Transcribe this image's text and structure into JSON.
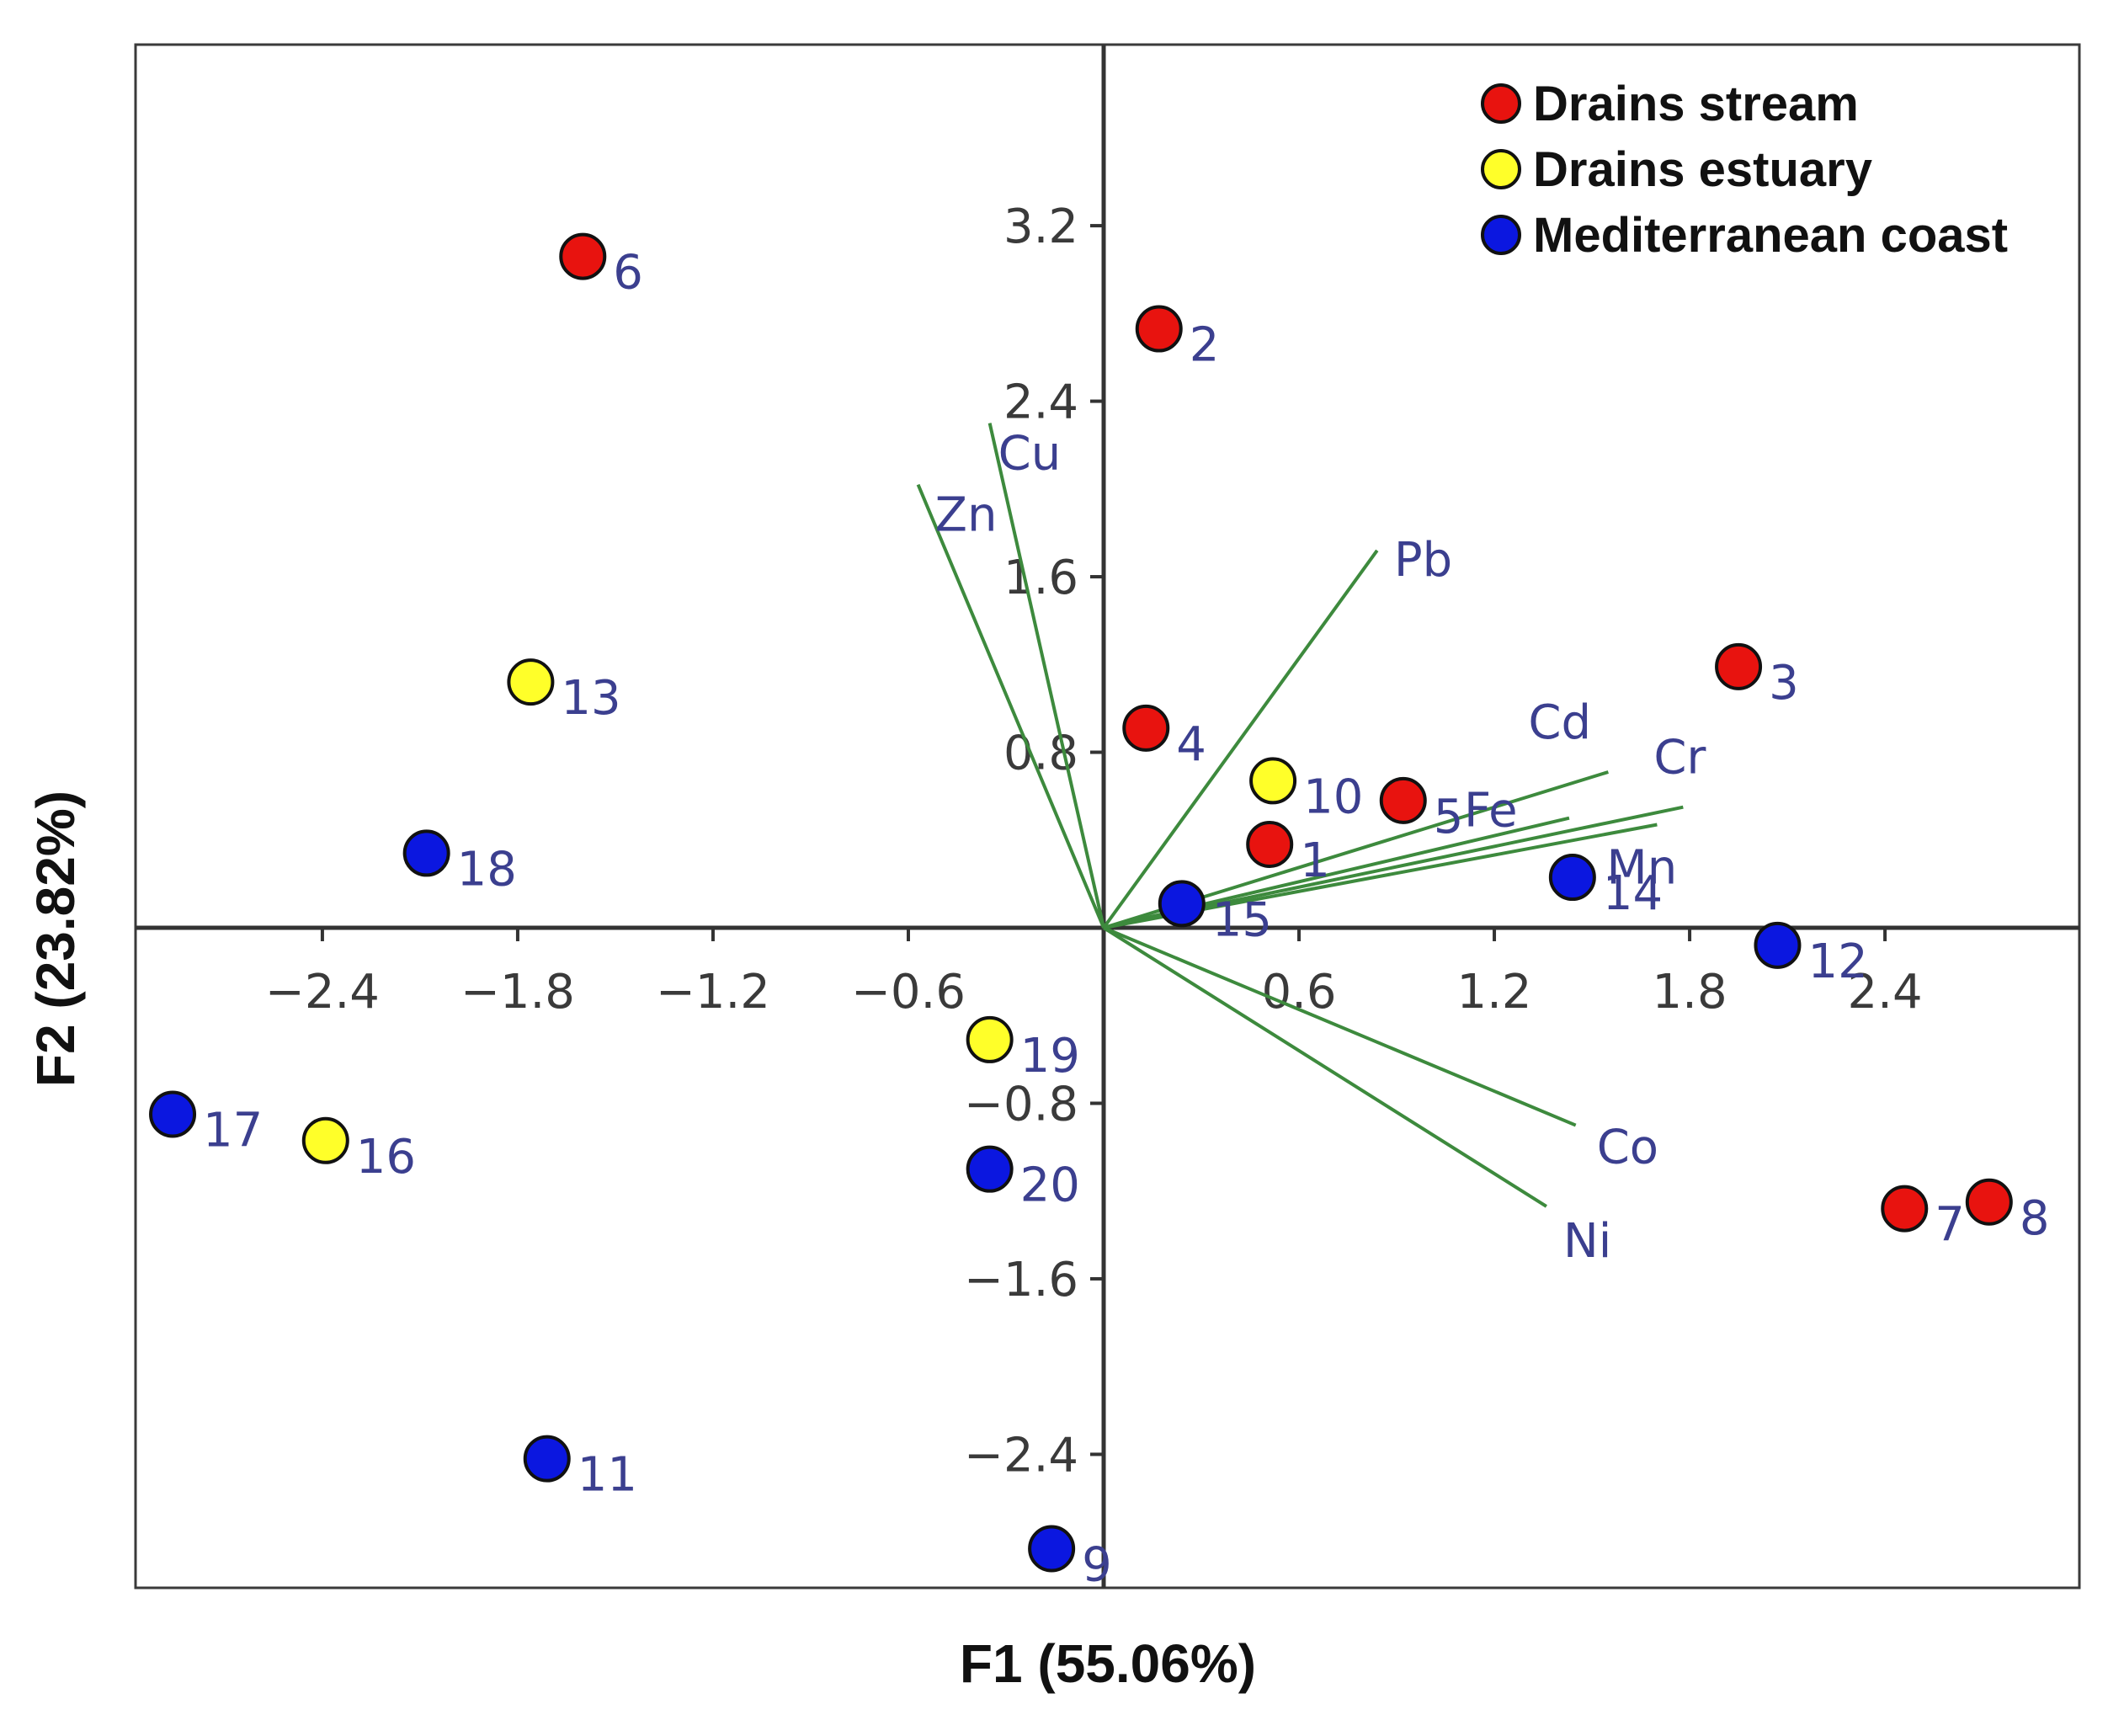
{
  "chart_data": {
    "type": "scatter",
    "subtype": "pca-biplot",
    "xlabel": "F1 (55.06%)",
    "ylabel": "F2 (23.82%)",
    "xlim": [
      -2.97,
      2.97
    ],
    "ylim": [
      -3.0,
      4.0
    ],
    "x_ticks": [
      "-2.4",
      "-1.8",
      "-1.2",
      "-0.6",
      "0.6",
      "1.2",
      "1.8",
      "2.4"
    ],
    "x_tick_values": [
      -2.4,
      -1.8,
      -1.2,
      -0.6,
      0.6,
      1.2,
      1.8,
      2.4
    ],
    "y_ticks": [
      "3.2",
      "2.4",
      "1.6",
      "0.8",
      "-0.8",
      "-1.6",
      "-2.4"
    ],
    "y_tick_values": [
      3.2,
      2.4,
      1.6,
      0.8,
      -0.8,
      -1.6,
      -2.4
    ],
    "legend_position": "top-right",
    "series": [
      {
        "name": "Drains stream",
        "color": "#e8130f",
        "points": [
          {
            "label": "1",
            "x": 0.51,
            "y": 0.38
          },
          {
            "label": "2",
            "x": 0.17,
            "y": 2.73
          },
          {
            "label": "3",
            "x": 1.95,
            "y": 1.19
          },
          {
            "label": "4",
            "x": 0.13,
            "y": 0.91
          },
          {
            "label": "5",
            "x": 0.92,
            "y": 0.58
          },
          {
            "label": "6",
            "x": -1.6,
            "y": 3.06
          },
          {
            "label": "7",
            "x": 2.46,
            "y": -1.28
          },
          {
            "label": "8",
            "x": 2.72,
            "y": -1.25
          }
        ]
      },
      {
        "name": "Drains estuary",
        "color": "#ffff29",
        "points": [
          {
            "label": "10",
            "x": 0.52,
            "y": 0.67
          },
          {
            "label": "13",
            "x": -1.76,
            "y": 1.12
          },
          {
            "label": "16",
            "x": -2.39,
            "y": -0.97
          },
          {
            "label": "19",
            "x": -0.35,
            "y": -0.51
          }
        ]
      },
      {
        "name": "Mediterranean coast",
        "color": "#0b17e0",
        "points": [
          {
            "label": "9",
            "x": -0.16,
            "y": -2.83
          },
          {
            "label": "11",
            "x": -1.71,
            "y": -2.42
          },
          {
            "label": "12",
            "x": 2.07,
            "y": -0.08
          },
          {
            "label": "14",
            "x": 1.44,
            "y": 0.23
          },
          {
            "label": "15",
            "x": 0.24,
            "y": 0.11
          },
          {
            "label": "17",
            "x": -2.86,
            "y": -0.85
          },
          {
            "label": "18",
            "x": -2.08,
            "y": 0.34
          },
          {
            "label": "20",
            "x": -0.35,
            "y": -1.1
          }
        ]
      }
    ],
    "loadings": [
      {
        "name": "Cu",
        "x": -0.35,
        "y": 2.3
      },
      {
        "name": "Zn",
        "x": -0.57,
        "y": 2.02
      },
      {
        "name": "Pb",
        "x": 0.84,
        "y": 1.72
      },
      {
        "name": "Cd",
        "x": 1.55,
        "y": 0.71
      },
      {
        "name": "Cr",
        "x": 1.78,
        "y": 0.55
      },
      {
        "name": "Fe",
        "x": 1.43,
        "y": 0.5
      },
      {
        "name": "Mn",
        "x": 1.7,
        "y": 0.47
      },
      {
        "name": "Co",
        "x": 1.45,
        "y": -0.9
      },
      {
        "name": "Ni",
        "x": 1.36,
        "y": -1.27
      }
    ]
  }
}
